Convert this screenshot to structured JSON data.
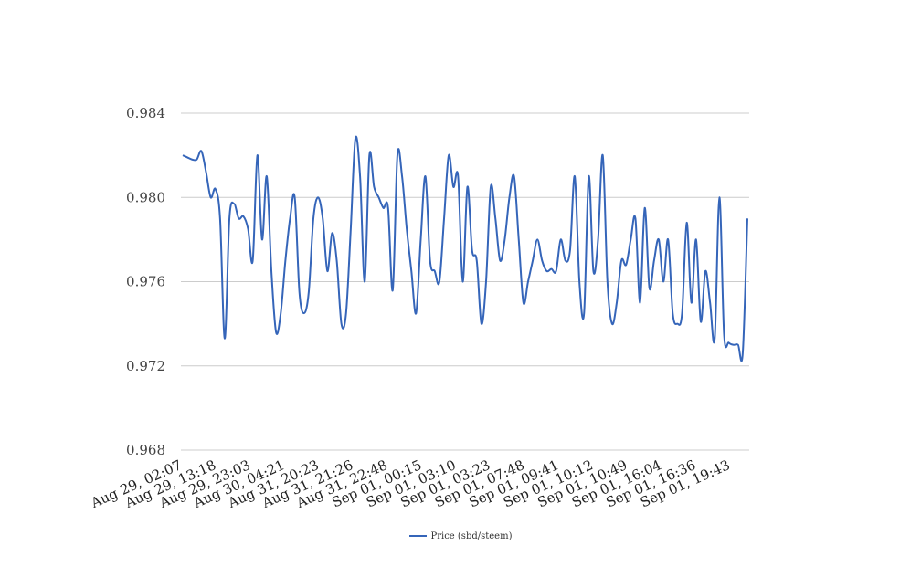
{
  "chart_data": {
    "type": "line",
    "title": "",
    "xlabel": "",
    "ylabel": "",
    "ylim": [
      0.968,
      0.984
    ],
    "y_ticks": [
      "0.968",
      "0.972",
      "0.976",
      "0.980",
      "0.984"
    ],
    "grid": true,
    "legend_position": "bottom",
    "x_tick_labels": [
      "Aug 29, 02:07",
      "Aug 29, 13:18",
      "Aug 29, 23:03",
      "Aug 30, 04:21",
      "Aug 31, 20:23",
      "Aug 31, 21:26",
      "Aug 31, 22:48",
      "Sep 01, 00:15",
      "Sep 01, 03:10",
      "Sep 01, 03:23",
      "Sep 01, 07:48",
      "Sep 01, 09:41",
      "Sep 01, 10:12",
      "Sep 01, 10:49",
      "Sep 01, 16:04",
      "Sep 01, 16:36",
      "Sep 01, 19:43"
    ],
    "series": [
      {
        "name": "Price (sbd/steem)",
        "color": "#3565b9",
        "values": [
          0.982,
          0.9819,
          0.9818,
          0.9818,
          0.9822,
          0.9812,
          0.98,
          0.9804,
          0.979,
          0.9733,
          0.979,
          0.9797,
          0.979,
          0.9791,
          0.9785,
          0.977,
          0.982,
          0.978,
          0.981,
          0.9765,
          0.9736,
          0.9745,
          0.977,
          0.979,
          0.98,
          0.9755,
          0.9745,
          0.9755,
          0.979,
          0.98,
          0.979,
          0.9765,
          0.9783,
          0.977,
          0.974,
          0.9745,
          0.9785,
          0.9828,
          0.981,
          0.976,
          0.982,
          0.9805,
          0.98,
          0.9795,
          0.9795,
          0.9756,
          0.982,
          0.981,
          0.9785,
          0.9765,
          0.9745,
          0.978,
          0.981,
          0.977,
          0.9765,
          0.976,
          0.979,
          0.982,
          0.9805,
          0.981,
          0.976,
          0.9805,
          0.9775,
          0.977,
          0.974,
          0.976,
          0.9805,
          0.979,
          0.977,
          0.978,
          0.98,
          0.981,
          0.978,
          0.975,
          0.976,
          0.977,
          0.978,
          0.977,
          0.9765,
          0.9766,
          0.9765,
          0.978,
          0.977,
          0.9775,
          0.981,
          0.976,
          0.9745,
          0.981,
          0.9765,
          0.978,
          0.982,
          0.976,
          0.974,
          0.975,
          0.977,
          0.9768,
          0.978,
          0.979,
          0.975,
          0.9795,
          0.9757,
          0.977,
          0.978,
          0.976,
          0.978,
          0.9745,
          0.974,
          0.9745,
          0.9788,
          0.975,
          0.978,
          0.9741,
          0.9765,
          0.975,
          0.9733,
          0.98,
          0.9735,
          0.9731,
          0.973,
          0.973,
          0.9726,
          0.979
        ]
      }
    ]
  }
}
